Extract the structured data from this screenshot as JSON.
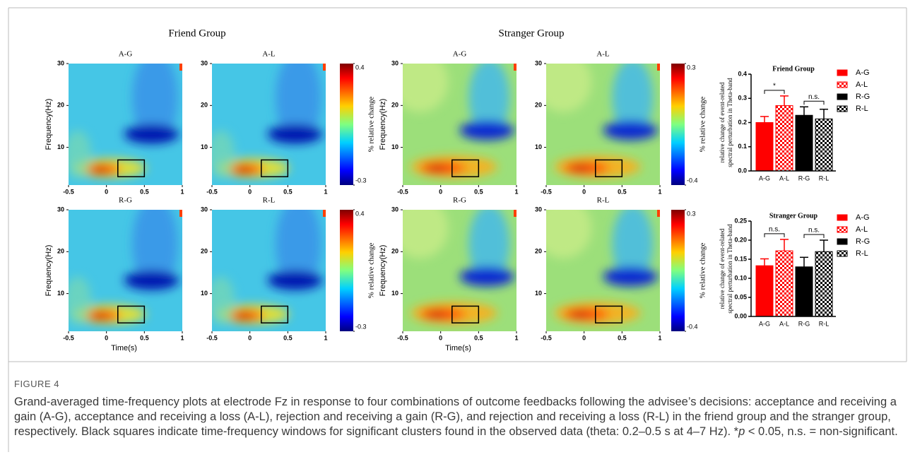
{
  "heatmap_axes": {
    "xlabel": "Time(s)",
    "ylabel": "Frequency(Hz)",
    "xlim": [
      -0.5,
      1
    ],
    "ylim": [
      1,
      30
    ],
    "xticks": [
      -0.5,
      0,
      0.5,
      1
    ],
    "yticks": [
      10,
      20,
      30
    ]
  },
  "groups": [
    {
      "title": "Friend Group",
      "panels": [
        {
          "title": "A-G"
        },
        {
          "title": "A-L"
        },
        {
          "title": "R-G"
        },
        {
          "title": "R-L"
        }
      ],
      "colorbar": {
        "label": "% relative change",
        "lim": [
          -0.3,
          0.4
        ],
        "ticks": [
          0.4,
          -0.3
        ]
      }
    },
    {
      "title": "Stranger Group",
      "panels": [
        {
          "title": "A-G"
        },
        {
          "title": "A-L"
        },
        {
          "title": "R-G"
        },
        {
          "title": "R-L"
        }
      ],
      "colorbar": {
        "label": "% relative change",
        "lim": [
          -0.4,
          0.3
        ],
        "ticks": [
          0.3,
          -0.4
        ]
      }
    }
  ],
  "bar_charts": [
    {
      "type": "bar",
      "title": "Friend Group",
      "ylabel": [
        "relative change of event-related",
        "spectral perturbation in Theta-band"
      ],
      "categories": [
        "A-G",
        "A-L",
        "R-G",
        "R-L"
      ],
      "values": [
        0.2,
        0.27,
        0.23,
        0.215
      ],
      "errors": [
        0.025,
        0.04,
        0.035,
        0.04
      ],
      "colors": [
        "#ff0000",
        "#ff0000",
        "#000000",
        "#000000"
      ],
      "patterned": [
        false,
        true,
        false,
        true
      ],
      "ylim": [
        0,
        0.4
      ],
      "yticks": [
        {
          "value": 0,
          "label": "0.0"
        },
        {
          "value": 0.1,
          "label": "0.1"
        },
        {
          "value": 0.2,
          "label": "0.2"
        },
        {
          "value": 0.3,
          "label": "0.3"
        },
        {
          "value": 0.4,
          "label": "0.4"
        }
      ],
      "annotations": [
        "*",
        "n.s."
      ]
    },
    {
      "type": "bar",
      "title": "Stranger Group",
      "ylabel": [
        "relative change of event-related",
        "spectral perturbation in Theta-band"
      ],
      "categories": [
        "A-G",
        "A-L",
        "R-G",
        "R-L"
      ],
      "values": [
        0.133,
        0.172,
        0.13,
        0.17
      ],
      "errors": [
        0.018,
        0.03,
        0.025,
        0.03
      ],
      "colors": [
        "#ff0000",
        "#ff0000",
        "#000000",
        "#000000"
      ],
      "patterned": [
        false,
        true,
        false,
        true
      ],
      "ylim": [
        0,
        0.25
      ],
      "yticks": [
        {
          "value": 0,
          "label": "0.00"
        },
        {
          "value": 0.05,
          "label": "0.05"
        },
        {
          "value": 0.1,
          "label": "0.10"
        },
        {
          "value": 0.15,
          "label": "0.15"
        },
        {
          "value": 0.2,
          "label": "0.20"
        },
        {
          "value": 0.25,
          "label": "0.25"
        }
      ],
      "annotations": [
        "n.s.",
        "n.s."
      ]
    }
  ],
  "caption": {
    "label": "FIGURE 4",
    "text": [
      "Grand-averaged time-frequency plots at electrode Fz in response to four combinations of outcome feedbacks following the advisee’s decisions: acceptance and receiving a gain (A-G), acceptance and receiving a loss (A-L), rejection and receiving a gain (R-G), and rejection and receiving a loss (R-L) in the friend group and the stranger group, respectively. Black squares indicate time-frequency windows for significant clusters found in the observed data (theta: 0.2–0.5 s at 4–7 Hz). *",
      "p",
      " < 0.05, n.s. = non-significant."
    ]
  }
}
